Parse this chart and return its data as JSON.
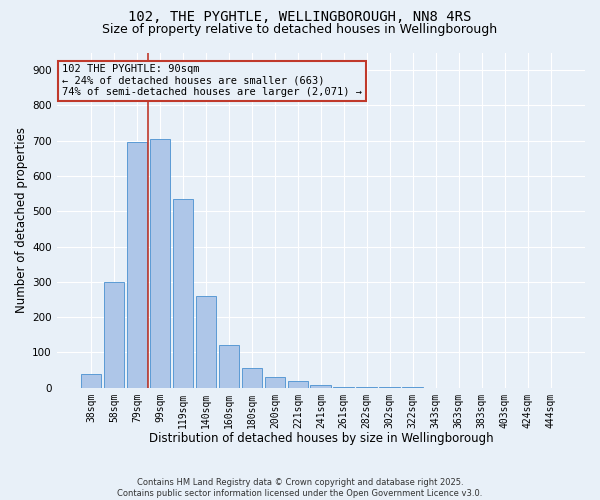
{
  "title_line1": "102, THE PYGHTLE, WELLINGBOROUGH, NN8 4RS",
  "title_line2": "Size of property relative to detached houses in Wellingborough",
  "xlabel": "Distribution of detached houses by size in Wellingborough",
  "ylabel": "Number of detached properties",
  "footnote": "Contains HM Land Registry data © Crown copyright and database right 2025.\nContains public sector information licensed under the Open Government Licence v3.0.",
  "categories": [
    "38sqm",
    "58sqm",
    "79sqm",
    "99sqm",
    "119sqm",
    "140sqm",
    "160sqm",
    "180sqm",
    "200sqm",
    "221sqm",
    "241sqm",
    "261sqm",
    "282sqm",
    "302sqm",
    "322sqm",
    "343sqm",
    "363sqm",
    "383sqm",
    "403sqm",
    "424sqm",
    "444sqm"
  ],
  "values": [
    40,
    300,
    695,
    705,
    535,
    260,
    120,
    55,
    30,
    18,
    8,
    3,
    2,
    1,
    1,
    0,
    0,
    0,
    0,
    0,
    0
  ],
  "bar_color": "#aec6e8",
  "bar_edge_color": "#5b9bd5",
  "background_color": "#e8f0f8",
  "vline_x": 2.5,
  "vline_color": "#c0392b",
  "annotation_text": "102 THE PYGHTLE: 90sqm\n← 24% of detached houses are smaller (663)\n74% of semi-detached houses are larger (2,071) →",
  "annotation_box_color": "#c0392b",
  "ylim": [
    0,
    950
  ],
  "yticks": [
    0,
    100,
    200,
    300,
    400,
    500,
    600,
    700,
    800,
    900
  ],
  "grid_color": "#ffffff",
  "title_fontsize": 10,
  "subtitle_fontsize": 9,
  "xlabel_fontsize": 8.5,
  "ylabel_fontsize": 8.5,
  "tick_fontsize": 7,
  "ann_fontsize": 7.5,
  "footnote_fontsize": 6
}
